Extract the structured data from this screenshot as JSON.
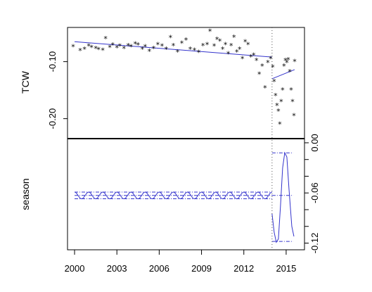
{
  "chart_data": [
    {
      "type": "scatter",
      "panel": "top",
      "ylabel": "TCW",
      "ylim": [
        -0.235,
        -0.04
      ],
      "yticks": [
        -0.2,
        -0.1
      ],
      "ytick_labels": [
        "-0.20",
        "-0.10"
      ],
      "y_axis_side": "left",
      "points": [
        [
          1999.9,
          -0.074
        ],
        [
          2000.4,
          -0.081
        ],
        [
          2000.7,
          -0.078
        ],
        [
          2001.0,
          -0.073
        ],
        [
          2001.2,
          -0.075
        ],
        [
          2001.5,
          -0.077
        ],
        [
          2001.7,
          -0.079
        ],
        [
          2002.0,
          -0.08
        ],
        [
          2002.2,
          -0.06
        ],
        [
          2002.5,
          -0.075
        ],
        [
          2002.7,
          -0.071
        ],
        [
          2003.0,
          -0.076
        ],
        [
          2003.2,
          -0.073
        ],
        [
          2003.5,
          -0.077
        ],
        [
          2003.8,
          -0.072
        ],
        [
          2004.0,
          -0.074
        ],
        [
          2004.3,
          -0.069
        ],
        [
          2004.5,
          -0.071
        ],
        [
          2004.8,
          -0.078
        ],
        [
          2005.0,
          -0.074
        ],
        [
          2005.3,
          -0.082
        ],
        [
          2005.6,
          -0.077
        ],
        [
          2005.9,
          -0.07
        ],
        [
          2006.2,
          -0.073
        ],
        [
          2006.5,
          -0.078
        ],
        [
          2006.8,
          -0.058
        ],
        [
          2007.0,
          -0.072
        ],
        [
          2007.3,
          -0.083
        ],
        [
          2007.6,
          -0.068
        ],
        [
          2007.9,
          -0.062
        ],
        [
          2008.2,
          -0.078
        ],
        [
          2008.5,
          -0.08
        ],
        [
          2008.8,
          -0.084
        ],
        [
          2009.1,
          -0.072
        ],
        [
          2009.4,
          -0.07
        ],
        [
          2009.6,
          -0.047
        ],
        [
          2009.9,
          -0.073
        ],
        [
          2010.1,
          -0.061
        ],
        [
          2010.3,
          -0.064
        ],
        [
          2010.5,
          -0.078
        ],
        [
          2010.7,
          -0.07
        ],
        [
          2010.9,
          -0.086
        ],
        [
          2011.1,
          -0.072
        ],
        [
          2011.3,
          -0.057
        ],
        [
          2011.5,
          -0.083
        ],
        [
          2011.7,
          -0.078
        ],
        [
          2011.9,
          -0.095
        ],
        [
          2012.1,
          -0.065
        ],
        [
          2012.3,
          -0.07
        ],
        [
          2012.5,
          -0.092
        ],
        [
          2012.7,
          -0.089
        ],
        [
          2012.9,
          -0.098
        ],
        [
          2013.1,
          -0.122
        ],
        [
          2013.3,
          -0.108
        ],
        [
          2013.5,
          -0.146
        ],
        [
          2013.7,
          -0.102
        ],
        [
          2013.9,
          -0.095
        ],
        [
          2014.05,
          -0.11
        ],
        [
          2014.15,
          -0.135
        ],
        [
          2014.25,
          -0.16
        ],
        [
          2014.35,
          -0.177
        ],
        [
          2014.45,
          -0.187
        ],
        [
          2014.55,
          -0.21
        ],
        [
          2014.65,
          -0.17
        ],
        [
          2014.75,
          -0.15
        ],
        [
          2014.85,
          -0.108
        ],
        [
          2014.95,
          -0.098
        ],
        [
          2015.05,
          -0.102
        ],
        [
          2015.15,
          -0.097
        ],
        [
          2015.25,
          -0.118
        ],
        [
          2015.35,
          -0.15
        ],
        [
          2015.45,
          -0.17
        ],
        [
          2015.55,
          -0.195
        ],
        [
          2015.6,
          -0.1
        ]
      ],
      "trend_segments": [
        [
          [
            2000.0,
            -0.065
          ],
          [
            2014.0,
            -0.092
          ]
        ],
        [
          [
            2014.0,
            -0.13
          ],
          [
            2015.6,
            -0.114
          ]
        ]
      ],
      "trend_color": "#3333cc"
    },
    {
      "type": "line",
      "panel": "bottom",
      "ylabel": "season",
      "ylim": [
        -0.128,
        0.005
      ],
      "yticks": [
        0.0,
        -0.06,
        -0.12
      ],
      "ytick_labels": [
        "0.00",
        "-0.06",
        "-0.12"
      ],
      "y_axis_side": "right",
      "season_early": {
        "from": 2000.0,
        "to": 2014.0,
        "center": -0.063,
        "amplitude": 0.004,
        "period": 1.0
      },
      "season_late": [
        [
          2014.0,
          -0.085
        ],
        [
          2014.15,
          -0.107
        ],
        [
          2014.3,
          -0.119
        ],
        [
          2014.45,
          -0.115
        ],
        [
          2014.6,
          -0.075
        ],
        [
          2014.75,
          -0.03
        ],
        [
          2014.9,
          -0.012
        ],
        [
          2015.05,
          -0.017
        ],
        [
          2015.2,
          -0.055
        ],
        [
          2015.4,
          -0.1
        ],
        [
          2015.55,
          -0.112
        ]
      ],
      "band_early": {
        "from": 2000.0,
        "to": 2014.0,
        "levels": [
          -0.059,
          -0.063,
          -0.067
        ]
      },
      "band_late": {
        "from": 2014.0,
        "to": 2015.5,
        "levels": [
          -0.012,
          -0.063,
          -0.118
        ]
      },
      "line_color": "#3333cc"
    }
  ],
  "x_axis": {
    "range": [
      1999.5,
      2016.3
    ],
    "ticks": [
      2000,
      2003,
      2006,
      2009,
      2012,
      2015
    ],
    "tick_labels": [
      "2000",
      "2003",
      "2006",
      "2009",
      "2012",
      "2015"
    ]
  },
  "breakpoint": {
    "x": 2014.0,
    "style": "dotted",
    "color": "#555555"
  }
}
